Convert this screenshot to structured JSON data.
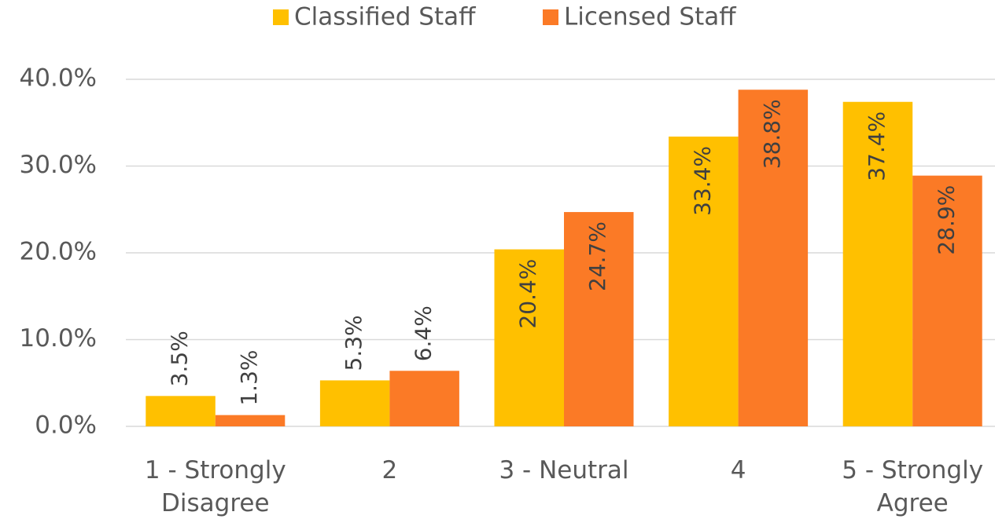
{
  "chart_data": {
    "type": "bar",
    "categories": [
      "1 - Strongly Disagree",
      "2",
      "3 - Neutral",
      "4",
      "5 - Strongly Agree"
    ],
    "series": [
      {
        "name": "Classified Staff",
        "color": "#ffc000",
        "values": [
          3.5,
          5.3,
          20.4,
          33.4,
          37.4
        ],
        "value_labels": [
          "3.5%",
          "5.3%",
          "20.4%",
          "33.4%",
          "37.4%"
        ]
      },
      {
        "name": "Licensed Staff",
        "color": "#fb7a26",
        "values": [
          1.3,
          6.4,
          24.7,
          38.8,
          28.9
        ],
        "value_labels": [
          "1.3%",
          "6.4%",
          "24.7%",
          "38.8%",
          "28.9%"
        ]
      }
    ],
    "ylim": [
      0,
      40
    ],
    "yticks": [
      {
        "value": 0,
        "label": "0.0%"
      },
      {
        "value": 10,
        "label": "10.0%"
      },
      {
        "value": 20,
        "label": "20.0%"
      },
      {
        "value": 30,
        "label": "30.0%"
      },
      {
        "value": 40,
        "label": "40.0%"
      }
    ],
    "grid": true,
    "legend": "top"
  }
}
